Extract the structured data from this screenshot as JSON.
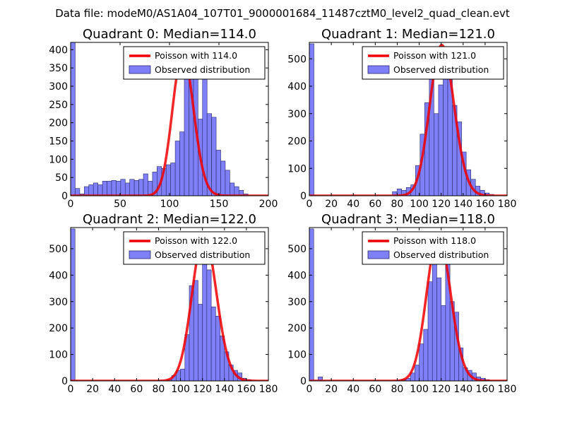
{
  "figure_title": "Data file: modeM0/AS1A04_107T01_9000001684_11487cztM0_level2_quad_clean.evt",
  "colors": {
    "bar_fill": "#7f7ff7",
    "bar_edge": "#2b2b6e",
    "fit_line": "#f00000"
  },
  "chart_data": [
    {
      "type": "bar",
      "title": "Quadrant 0: Median=114.0",
      "xlim": [
        0,
        200
      ],
      "ylim": [
        0,
        420
      ],
      "xticks": [
        0,
        50,
        100,
        150,
        200
      ],
      "yticks": [
        0,
        50,
        100,
        150,
        200,
        250,
        300,
        350,
        400
      ],
      "bin_width": 4.6,
      "bin_start": [
        0,
        4.6,
        9.2,
        13.8,
        18.4,
        23.0,
        27.6,
        32.2,
        36.8,
        41.4,
        46.0,
        50.6,
        55.2,
        59.8,
        64.4,
        69.0,
        73.6,
        78.2,
        82.8,
        87.4,
        92.0,
        96.6,
        101.2,
        105.8,
        110.4,
        115.0,
        119.6,
        124.2,
        128.8,
        133.4,
        138.0,
        142.6,
        147.2,
        151.8,
        156.4,
        161.0,
        165.6,
        170.2,
        174.8
      ],
      "bin_counts": [
        420,
        20,
        5,
        25,
        30,
        35,
        30,
        40,
        40,
        42,
        40,
        45,
        35,
        45,
        42,
        45,
        60,
        40,
        65,
        80,
        75,
        85,
        90,
        150,
        175,
        330,
        395,
        380,
        210,
        340,
        225,
        215,
        125,
        95,
        70,
        35,
        25,
        15,
        5
      ],
      "poisson_mean": 114.0,
      "poisson_peak": 390,
      "legend": [
        "Poisson with 114.0",
        "Observed distribution"
      ],
      "legend_loc": "upper right"
    },
    {
      "type": "bar",
      "title": "Quadrant 1: Median=121.0",
      "xlim": [
        0,
        180
      ],
      "ylim": [
        0,
        560
      ],
      "xticks": [
        0,
        20,
        40,
        60,
        80,
        100,
        120,
        140,
        160,
        180
      ],
      "yticks": [
        0,
        100,
        200,
        300,
        400,
        500
      ],
      "bin_width": 4.2,
      "bin_start": [
        0,
        4.2,
        8.4,
        12.6,
        16.8,
        21.0,
        25.2,
        29.4,
        33.6,
        37.8,
        42.0,
        46.2,
        50.4,
        54.6,
        58.8,
        63.0,
        67.2,
        71.4,
        75.6,
        79.8,
        84.0,
        88.2,
        92.4,
        96.6,
        100.8,
        105.0,
        109.2,
        113.4,
        117.6,
        121.8,
        126.0,
        130.2,
        134.4,
        138.6,
        142.8,
        147.0,
        151.2,
        155.4,
        159.6,
        163.8
      ],
      "bin_counts": [
        555,
        0,
        0,
        0,
        0,
        0,
        0,
        0,
        0,
        0,
        0,
        0,
        0,
        0,
        0,
        0,
        0,
        0,
        15,
        25,
        20,
        30,
        40,
        110,
        225,
        340,
        460,
        300,
        405,
        435,
        470,
        330,
        270,
        160,
        95,
        60,
        35,
        20,
        10,
        5
      ],
      "poisson_mean": 121.0,
      "poisson_peak": 550,
      "legend": [
        "Poisson with 121.0",
        "Observed distribution"
      ],
      "legend_loc": "upper right"
    },
    {
      "type": "bar",
      "title": "Quadrant 2: Median=122.0",
      "xlim": [
        0,
        180
      ],
      "ylim": [
        0,
        580
      ],
      "xticks": [
        0,
        20,
        40,
        60,
        80,
        100,
        120,
        140,
        160,
        180
      ],
      "yticks": [
        0,
        100,
        200,
        300,
        400,
        500
      ],
      "bin_width": 4.0,
      "bin_start": [
        0,
        4,
        8,
        12,
        16,
        20,
        24,
        28,
        32,
        36,
        40,
        44,
        48,
        52,
        56,
        60,
        64,
        68,
        72,
        76,
        80,
        84,
        88,
        92,
        96,
        100,
        104,
        108,
        112,
        116,
        120,
        124,
        128,
        132,
        136,
        140,
        144,
        148,
        152,
        156,
        160,
        164
      ],
      "bin_counts": [
        575,
        0,
        0,
        0,
        0,
        0,
        0,
        0,
        0,
        0,
        0,
        0,
        0,
        0,
        0,
        0,
        0,
        0,
        0,
        0,
        0,
        0,
        5,
        20,
        40,
        45,
        175,
        360,
        380,
        290,
        440,
        420,
        280,
        245,
        170,
        110,
        60,
        40,
        30,
        10,
        5,
        0
      ],
      "poisson_mean": 122.0,
      "poisson_peak": 550,
      "legend": [
        "Poisson with 122.0",
        "Observed distribution"
      ],
      "legend_loc": "upper right"
    },
    {
      "type": "bar",
      "title": "Quadrant 3: Median=118.0",
      "xlim": [
        0,
        180
      ],
      "ylim": [
        0,
        580
      ],
      "xticks": [
        0,
        20,
        40,
        60,
        80,
        100,
        120,
        140,
        160,
        180
      ],
      "yticks": [
        0,
        100,
        200,
        300,
        400,
        500
      ],
      "bin_width": 4.0,
      "bin_start": [
        0,
        4,
        8,
        12,
        16,
        20,
        24,
        28,
        32,
        36,
        40,
        44,
        48,
        52,
        56,
        60,
        64,
        68,
        72,
        76,
        80,
        84,
        88,
        92,
        96,
        100,
        104,
        108,
        112,
        116,
        120,
        124,
        128,
        132,
        136,
        140,
        144,
        148,
        152,
        156,
        160,
        164
      ],
      "bin_counts": [
        575,
        0,
        15,
        0,
        0,
        0,
        0,
        0,
        0,
        0,
        0,
        0,
        0,
        0,
        0,
        0,
        0,
        0,
        0,
        0,
        0,
        5,
        10,
        30,
        60,
        140,
        195,
        375,
        480,
        390,
        285,
        470,
        300,
        260,
        125,
        50,
        40,
        30,
        15,
        10,
        5,
        0
      ],
      "poisson_mean": 118.0,
      "poisson_peak": 550,
      "legend": [
        "Poisson with 118.0",
        "Observed distribution"
      ],
      "legend_loc": "upper right"
    }
  ]
}
